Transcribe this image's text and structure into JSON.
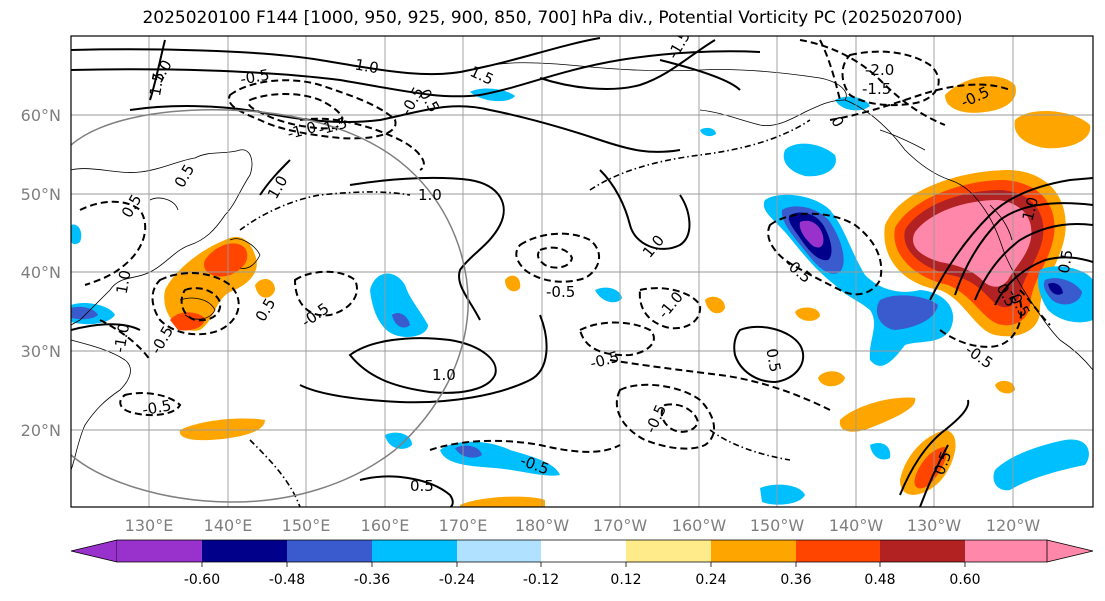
{
  "title": "2025020100 F144 [1000, 950, 925, 900, 850, 700] hPa div., Potential Vorticity PC (2025020700)",
  "lat_labels": [
    "60°N",
    "50°N",
    "40°N",
    "30°N",
    "20°N"
  ],
  "lon_labels": [
    "130°E",
    "140°E",
    "150°E",
    "160°E",
    "170°E",
    "180°W",
    "170°W",
    "160°W",
    "150°W",
    "140°W",
    "130°W",
    "120°W"
  ],
  "contour_labels": [
    "1.5",
    "1.0",
    "0.5",
    "-1.0",
    "-1.5",
    "-0.5",
    "-0.5",
    "1.0",
    "1.0",
    "1.5",
    "0.5",
    "1.0",
    "0.5",
    "1.0",
    "-0.5",
    "0.5",
    "-0.5",
    "-0.5",
    "-1.0",
    "1.0",
    "-0.5",
    "-0.5",
    "0.5",
    "-0.5",
    "-1.0",
    "1.0",
    "-0.5",
    "-0.5",
    "0.5",
    "-0.5",
    "0.5",
    "0.5",
    "-2.0",
    "-1.5",
    "0",
    "-0.5",
    "-1.5",
    "1.0",
    "0.5",
    "-0.5"
  ],
  "colorbar": {
    "ticks": [
      "-0.60",
      "-0.48",
      "-0.36",
      "-0.24",
      "-0.12",
      "0.12",
      "0.24",
      "0.36",
      "0.48",
      "0.60"
    ],
    "colors": [
      "#9932cc",
      "#00008b",
      "#3a5bcd",
      "#00bfff",
      "#b0e2ff",
      "#ffffff",
      "#ffeb8a",
      "#ffa500",
      "#ff4500",
      "#b22222",
      "#ff88aa"
    ]
  }
}
